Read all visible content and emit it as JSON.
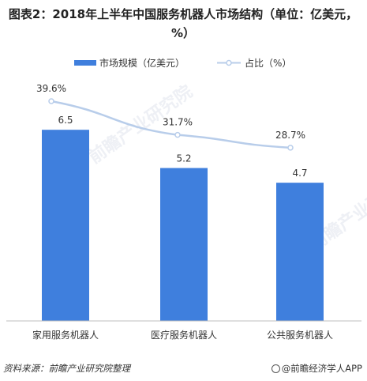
{
  "title": "图表2：2018年上半年中国服务机器人市场结构（单位：亿美元，%）",
  "chart_data": {
    "type": "bar",
    "categories": [
      "家用服务机器人",
      "医疗服务机器人",
      "公共服务机器人"
    ],
    "series": [
      {
        "name": "市场规模（亿美元）",
        "type": "bar",
        "values": [
          6.5,
          5.2,
          4.7
        ],
        "labels": [
          "6.5",
          "5.2",
          "4.7"
        ],
        "color": "#3f7fdd"
      },
      {
        "name": "占比（%）",
        "type": "line",
        "values": [
          39.6,
          31.7,
          28.7
        ],
        "labels": [
          "39.6%",
          "31.7%",
          "28.7%"
        ],
        "color": "#b8cdea"
      }
    ],
    "legend_position": "top",
    "grid": false
  },
  "footer": {
    "source": "资料来源：前瞻产业研究院整理",
    "brand": "@前瞻经济学人APP"
  },
  "watermark": "前瞻产业研究院"
}
